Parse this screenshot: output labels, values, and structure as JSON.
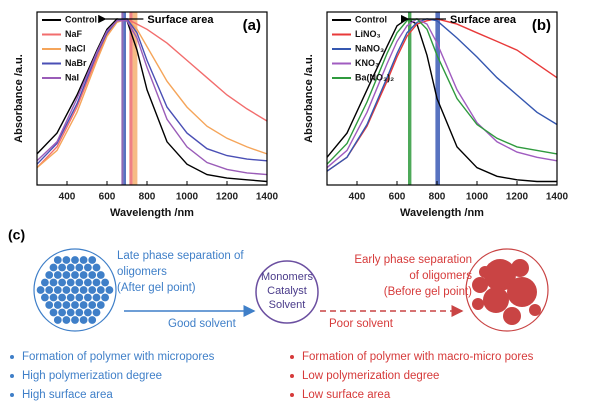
{
  "chart_data": [
    {
      "type": "line",
      "panel": "(a)",
      "xlabel": "Wavelength /nm",
      "ylabel": "Absorbance /a.u.",
      "annotation": "Surface area",
      "x": [
        250,
        350,
        450,
        550,
        600,
        650,
        700,
        750,
        800,
        900,
        1000,
        1100,
        1200,
        1300,
        1400
      ],
      "xlim": [
        250,
        1400
      ],
      "xticks": [
        400,
        600,
        800,
        1000,
        1200,
        1400
      ],
      "ylim": [
        0,
        1
      ],
      "bands": [
        {
          "range": [
            672,
            682
          ],
          "color": "#7b4fa8"
        },
        {
          "range": [
            682,
            695
          ],
          "color": "#3b5bb5"
        },
        {
          "range": [
            712,
            728
          ],
          "color": "#ec6a6e"
        },
        {
          "range": [
            728,
            752
          ],
          "color": "#f5b070"
        }
      ],
      "series": [
        {
          "name": "Control",
          "color": "#000000",
          "values": [
            0.18,
            0.3,
            0.52,
            0.78,
            0.9,
            0.96,
            0.95,
            0.78,
            0.55,
            0.25,
            0.12,
            0.06,
            0.04,
            0.03,
            0.02
          ]
        },
        {
          "name": "NaF",
          "color": "#f26d6d",
          "values": [
            0.1,
            0.22,
            0.45,
            0.74,
            0.87,
            0.95,
            0.96,
            0.93,
            0.9,
            0.82,
            0.72,
            0.62,
            0.52,
            0.44,
            0.37
          ]
        },
        {
          "name": "NaCl",
          "color": "#f5a55a",
          "values": [
            0.1,
            0.2,
            0.42,
            0.72,
            0.86,
            0.94,
            0.96,
            0.9,
            0.8,
            0.6,
            0.45,
            0.34,
            0.27,
            0.22,
            0.18
          ]
        },
        {
          "name": "NaBr",
          "color": "#4a4fb5",
          "values": [
            0.12,
            0.24,
            0.47,
            0.76,
            0.88,
            0.95,
            0.96,
            0.88,
            0.72,
            0.45,
            0.3,
            0.21,
            0.17,
            0.15,
            0.14
          ]
        },
        {
          "name": "NaI",
          "color": "#9a5cb8",
          "values": [
            0.14,
            0.25,
            0.5,
            0.77,
            0.89,
            0.95,
            0.95,
            0.85,
            0.68,
            0.38,
            0.22,
            0.13,
            0.09,
            0.07,
            0.06
          ]
        }
      ]
    },
    {
      "type": "line",
      "panel": "(b)",
      "xlabel": "Wavelength /nm",
      "ylabel": "Absorbance /a.u.",
      "annotation": "Surface area",
      "x": [
        250,
        350,
        450,
        550,
        600,
        650,
        700,
        750,
        800,
        900,
        1000,
        1100,
        1200,
        1300,
        1400
      ],
      "xlim": [
        250,
        1400
      ],
      "xticks": [
        400,
        600,
        800,
        1000,
        1200,
        1400
      ],
      "ylim": [
        0,
        1
      ],
      "bands": [
        {
          "range": [
            655,
            672
          ],
          "color": "#2e9a3c"
        },
        {
          "range": [
            792,
            815
          ],
          "color": "#3b5bb5"
        }
      ],
      "series": [
        {
          "name": "Control",
          "color": "#000000",
          "values": [
            0.16,
            0.3,
            0.55,
            0.8,
            0.92,
            0.96,
            0.93,
            0.75,
            0.5,
            0.22,
            0.1,
            0.05,
            0.03,
            0.02,
            0.02
          ]
        },
        {
          "name": "LiNO₃",
          "color": "#e83a3a",
          "values": [
            0.08,
            0.16,
            0.34,
            0.6,
            0.74,
            0.86,
            0.93,
            0.95,
            0.96,
            0.93,
            0.88,
            0.83,
            0.78,
            0.7,
            0.62
          ]
        },
        {
          "name": "NaNO₃",
          "color": "#3557b0",
          "values": [
            0.08,
            0.16,
            0.35,
            0.62,
            0.76,
            0.88,
            0.94,
            0.96,
            0.95,
            0.85,
            0.74,
            0.62,
            0.52,
            0.42,
            0.35
          ]
        },
        {
          "name": "KNO₃",
          "color": "#a05cc0",
          "values": [
            0.1,
            0.2,
            0.42,
            0.7,
            0.83,
            0.92,
            0.96,
            0.93,
            0.82,
            0.55,
            0.36,
            0.25,
            0.19,
            0.16,
            0.14
          ]
        },
        {
          "name": "Ba(NO₃)₂",
          "color": "#2f9a3e",
          "values": [
            0.12,
            0.24,
            0.48,
            0.76,
            0.88,
            0.95,
            0.96,
            0.9,
            0.75,
            0.5,
            0.35,
            0.27,
            0.22,
            0.2,
            0.18
          ]
        }
      ]
    }
  ],
  "diagram": {
    "label": "(c)",
    "center": [
      "Monomers",
      "Catalyst",
      "Solvent"
    ],
    "left_caption": [
      "Late phase separation of",
      "oligomers",
      "(After gel point)"
    ],
    "right_caption": [
      "Early phase separation",
      "of oligomers",
      "(Before gel point)"
    ],
    "left_arrow": "Good solvent",
    "right_arrow": "Poor solvent",
    "left_bullets": [
      "Formation of polymer with micropores",
      "High polymerization degree",
      "High surface area"
    ],
    "right_bullets": [
      "Formation of polymer with macro-micro pores",
      "Low polymerization degree",
      "Low surface area"
    ]
  }
}
